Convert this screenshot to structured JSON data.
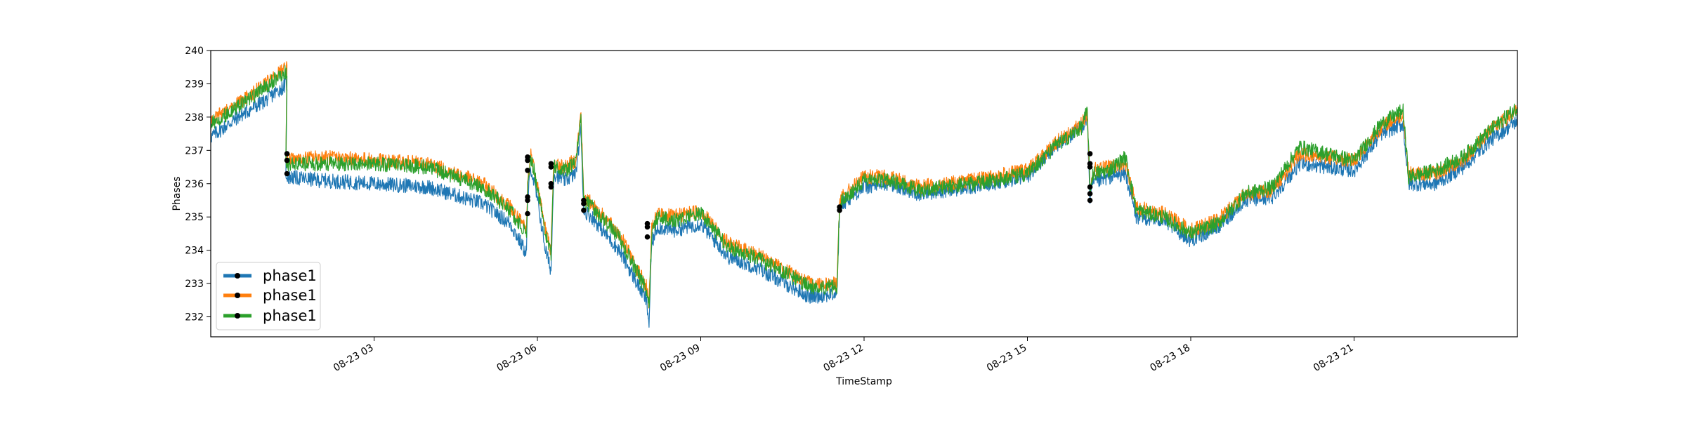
{
  "chart_data": {
    "type": "line",
    "title": "",
    "xlabel": "TimeStamp",
    "ylabel": "Phases",
    "ylim": [
      231.4,
      240.0
    ],
    "xlim": [
      0,
      24
    ],
    "x_unit": "hours of 2020-08-23",
    "yticks": [
      232,
      233,
      234,
      235,
      236,
      237,
      238,
      239,
      240
    ],
    "xticks": [
      {
        "x": 3,
        "label": "08-23 03"
      },
      {
        "x": 6,
        "label": "08-23 06"
      },
      {
        "x": 9,
        "label": "08-23 09"
      },
      {
        "x": 12,
        "label": "08-23 12"
      },
      {
        "x": 15,
        "label": "08-23 15"
      },
      {
        "x": 18,
        "label": "08-23 18"
      },
      {
        "x": 21,
        "label": "08-23 21"
      }
    ],
    "grid": false,
    "legend_position": "lower-left",
    "series": [
      {
        "name": "phase1",
        "color": "#1f77b4",
        "x": [
          0,
          0.5,
          1,
          1.4,
          1.38,
          1.42,
          2,
          3,
          4,
          5,
          5.5,
          5.8,
          5.82,
          5.88,
          6.0,
          6.15,
          6.25,
          6.3,
          6.5,
          6.7,
          6.8,
          6.85,
          7,
          7.5,
          8,
          8.05,
          8.1,
          8.2,
          8.5,
          9,
          9.5,
          10,
          11,
          11.5,
          11.55,
          11.6,
          12,
          12.5,
          13,
          14,
          15,
          15.5,
          16,
          16.1,
          16.15,
          16.2,
          16.5,
          16.8,
          17,
          17.5,
          18,
          18.5,
          19,
          19.5,
          20,
          20.5,
          21,
          21.5,
          21.9,
          22,
          22.5,
          23,
          23.5,
          24
        ],
        "y": [
          237.4,
          238.0,
          238.5,
          239.0,
          236.3,
          236.2,
          236.1,
          236.0,
          235.9,
          235.4,
          234.8,
          233.9,
          235.5,
          236.5,
          235.5,
          234.0,
          233.4,
          236.3,
          236.1,
          236.3,
          237.6,
          235.2,
          235.0,
          234.0,
          232.5,
          231.8,
          234.2,
          234.7,
          234.6,
          234.8,
          233.8,
          233.5,
          232.6,
          232.7,
          235.2,
          235.4,
          235.9,
          236.0,
          235.7,
          235.9,
          236.2,
          237.1,
          237.7,
          238.0,
          235.5,
          236.0,
          236.2,
          236.3,
          235.0,
          234.9,
          234.3,
          234.7,
          235.5,
          235.6,
          236.6,
          236.5,
          236.4,
          237.5,
          237.8,
          236.0,
          236.0,
          236.5,
          237.3,
          237.9
        ]
      },
      {
        "name": "phase1",
        "color": "#ff7f0e",
        "x": [
          0,
          0.5,
          1,
          1.4,
          1.38,
          1.42,
          2,
          3,
          4,
          5,
          5.5,
          5.8,
          5.82,
          5.88,
          6.0,
          6.15,
          6.25,
          6.3,
          6.5,
          6.7,
          6.8,
          6.85,
          7,
          7.5,
          8,
          8.05,
          8.1,
          8.2,
          8.5,
          9,
          9.5,
          10,
          11,
          11.5,
          11.55,
          11.6,
          12,
          12.5,
          13,
          14,
          15,
          15.5,
          16,
          16.1,
          16.15,
          16.2,
          16.5,
          16.8,
          17,
          17.5,
          18,
          18.5,
          19,
          19.5,
          20,
          20.5,
          21,
          21.5,
          21.9,
          22,
          22.5,
          23,
          23.5,
          24
        ],
        "y": [
          237.9,
          238.4,
          239.0,
          239.5,
          236.8,
          236.7,
          236.8,
          236.7,
          236.6,
          236.0,
          235.3,
          234.6,
          236.0,
          236.9,
          236.0,
          234.6,
          234.0,
          236.6,
          236.5,
          236.7,
          238.1,
          235.6,
          235.4,
          234.5,
          232.9,
          232.4,
          234.6,
          235.1,
          235.0,
          235.2,
          234.2,
          233.9,
          233.0,
          233.0,
          235.4,
          235.6,
          236.2,
          236.2,
          235.9,
          236.1,
          236.4,
          237.2,
          237.8,
          238.1,
          235.9,
          236.4,
          236.5,
          236.6,
          235.3,
          235.1,
          234.6,
          234.9,
          235.7,
          235.8,
          236.9,
          236.8,
          236.7,
          237.7,
          238.1,
          236.3,
          236.3,
          236.7,
          237.6,
          238.2
        ]
      },
      {
        "name": "phase1",
        "color": "#2ca02c",
        "x": [
          0,
          0.5,
          1,
          1.4,
          1.38,
          1.42,
          2,
          3,
          4,
          5,
          5.5,
          5.8,
          5.82,
          5.88,
          6.0,
          6.15,
          6.25,
          6.3,
          6.5,
          6.7,
          6.8,
          6.85,
          7,
          7.5,
          8,
          8.05,
          8.1,
          8.2,
          8.5,
          9,
          9.5,
          10,
          11,
          11.5,
          11.55,
          11.6,
          12,
          12.5,
          13,
          14,
          15,
          15.5,
          16,
          16.1,
          16.15,
          16.2,
          16.5,
          16.8,
          17,
          17.5,
          18,
          18.5,
          19,
          19.5,
          20,
          20.5,
          21,
          21.5,
          21.9,
          22,
          22.5,
          23,
          23.5,
          24
        ],
        "y": [
          237.8,
          238.3,
          238.9,
          239.4,
          236.6,
          236.6,
          236.6,
          236.6,
          236.5,
          235.9,
          235.2,
          234.5,
          235.9,
          236.8,
          235.9,
          234.5,
          233.9,
          236.5,
          236.4,
          236.6,
          238.0,
          235.5,
          235.3,
          234.4,
          232.8,
          232.3,
          234.5,
          235.0,
          234.9,
          235.1,
          234.1,
          233.8,
          232.9,
          232.9,
          235.3,
          235.5,
          236.1,
          236.1,
          235.8,
          236.0,
          236.3,
          237.1,
          237.7,
          238.2,
          235.8,
          236.3,
          236.4,
          236.8,
          235.2,
          235.0,
          234.5,
          234.8,
          235.7,
          235.9,
          237.1,
          236.9,
          236.7,
          237.8,
          238.2,
          236.2,
          236.4,
          236.8,
          237.6,
          238.3
        ]
      }
    ],
    "markers": [
      {
        "x": 1.4,
        "y": 236.9
      },
      {
        "x": 1.4,
        "y": 236.7
      },
      {
        "x": 1.4,
        "y": 236.3
      },
      {
        "x": 5.82,
        "y": 236.8
      },
      {
        "x": 5.82,
        "y": 236.7
      },
      {
        "x": 5.82,
        "y": 236.4
      },
      {
        "x": 5.82,
        "y": 235.6
      },
      {
        "x": 5.82,
        "y": 235.5
      },
      {
        "x": 5.82,
        "y": 235.1
      },
      {
        "x": 6.25,
        "y": 236.6
      },
      {
        "x": 6.25,
        "y": 236.5
      },
      {
        "x": 6.25,
        "y": 236.0
      },
      {
        "x": 6.25,
        "y": 235.9
      },
      {
        "x": 6.85,
        "y": 235.5
      },
      {
        "x": 6.85,
        "y": 235.4
      },
      {
        "x": 6.85,
        "y": 235.2
      },
      {
        "x": 8.02,
        "y": 234.8
      },
      {
        "x": 8.02,
        "y": 234.7
      },
      {
        "x": 8.02,
        "y": 234.4
      },
      {
        "x": 11.55,
        "y": 235.3
      },
      {
        "x": 11.55,
        "y": 235.2
      },
      {
        "x": 16.15,
        "y": 236.9
      },
      {
        "x": 16.15,
        "y": 236.6
      },
      {
        "x": 16.15,
        "y": 236.5
      },
      {
        "x": 16.15,
        "y": 235.9
      },
      {
        "x": 16.15,
        "y": 235.7
      },
      {
        "x": 16.15,
        "y": 235.5
      }
    ],
    "marker_color": "#000000",
    "axis_color": "#000000",
    "background": "#ffffff"
  },
  "legend": {
    "items": [
      {
        "label": "phase1",
        "color": "#1f77b4"
      },
      {
        "label": "phase1",
        "color": "#ff7f0e"
      },
      {
        "label": "phase1",
        "color": "#2ca02c"
      }
    ]
  }
}
